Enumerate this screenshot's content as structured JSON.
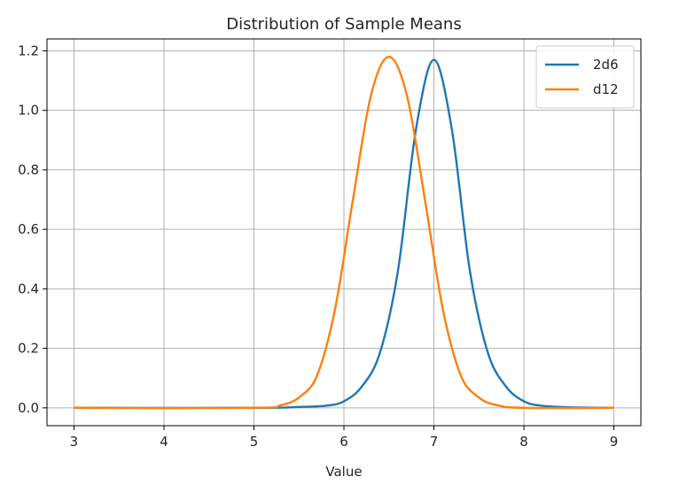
{
  "chart_data": {
    "type": "line",
    "title": "Distribution of Sample Means",
    "xlabel": "Value",
    "ylabel": "",
    "xlim": [
      2.7,
      9.3
    ],
    "ylim": [
      -0.06,
      1.24
    ],
    "xticks": [
      3,
      4,
      5,
      6,
      7,
      8,
      9
    ],
    "xtick_labels": [
      "3",
      "4",
      "5",
      "6",
      "7",
      "8",
      "9"
    ],
    "yticks": [
      0.0,
      0.2,
      0.4,
      0.6,
      0.8,
      1.0,
      1.2
    ],
    "ytick_labels": [
      "0.0",
      "0.2",
      "0.4",
      "0.6",
      "0.8",
      "1.0",
      "1.2"
    ],
    "grid": true,
    "legend_position": "top-right",
    "series": [
      {
        "name": "2d6",
        "color": "#1f77b4",
        "x": [
          3.0,
          5.0,
          5.5,
          5.8,
          6.0,
          6.2,
          6.4,
          6.6,
          6.8,
          7.0,
          7.2,
          7.4,
          7.6,
          7.8,
          8.0,
          8.2,
          8.5,
          9.0
        ],
        "y": [
          0.0,
          0.0,
          0.003,
          0.007,
          0.022,
          0.072,
          0.185,
          0.46,
          0.935,
          1.17,
          0.935,
          0.46,
          0.185,
          0.072,
          0.022,
          0.007,
          0.002,
          0.0
        ]
      },
      {
        "name": "d12",
        "color": "#ff7f0e",
        "x": [
          3.0,
          5.0,
          5.3,
          5.5,
          5.7,
          5.9,
          6.1,
          6.3,
          6.5,
          6.7,
          6.9,
          7.1,
          7.3,
          7.5,
          7.7,
          8.0,
          9.0
        ],
        "y": [
          0.0,
          0.0,
          0.009,
          0.035,
          0.108,
          0.33,
          0.7,
          1.05,
          1.18,
          1.05,
          0.7,
          0.33,
          0.108,
          0.035,
          0.009,
          0.0,
          0.0
        ]
      }
    ]
  }
}
